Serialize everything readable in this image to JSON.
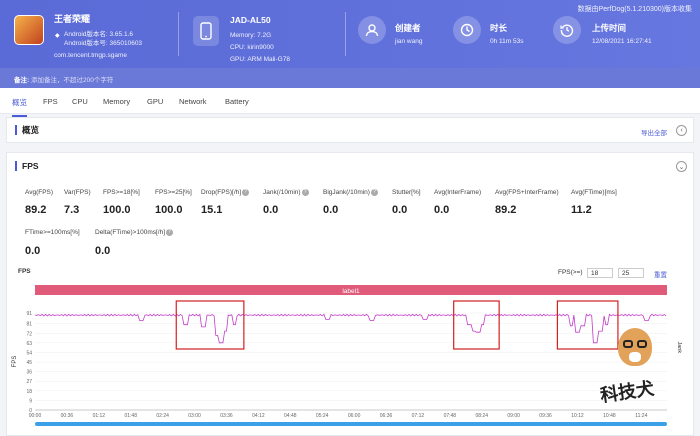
{
  "header": {
    "source": "数据由PerfDog(5.1.210300)版本收集",
    "app": {
      "name": "王者荣耀",
      "android_version": "Android版本名: 3.65.1.6",
      "android_code": "Android版本号: 365010603",
      "package": "com.tencent.tmgp.sgame"
    },
    "device": {
      "name": "JAD-AL50",
      "memory": "Memory: 7.2G",
      "cpu": "CPU: kirin9000",
      "gpu": "GPU: ARM Mali-G78"
    },
    "creator": {
      "label": "创建者",
      "value": "jian wang"
    },
    "duration": {
      "label": "时长",
      "value": "0h 11m 53s"
    },
    "upload": {
      "label": "上传时间",
      "value": "12/08/2021 16:27:41"
    },
    "note": {
      "label": "备注:",
      "placeholder": "添加备注，不超过200个字符"
    }
  },
  "tabs": [
    "概览",
    "FPS",
    "CPU",
    "Memory",
    "GPU",
    "Network",
    "Battery"
  ],
  "overview": {
    "title": "概览",
    "export": "导出全部"
  },
  "fps_panel": {
    "title": "FPS",
    "metrics_row1": [
      {
        "label": "Avg(FPS)",
        "value": "89.2",
        "help": false
      },
      {
        "label": "Var(FPS)",
        "value": "7.3",
        "help": false
      },
      {
        "label": "FPS>=18[%]",
        "value": "100.0",
        "help": false
      },
      {
        "label": "FPS>=25[%]",
        "value": "100.0",
        "help": false
      },
      {
        "label": "Drop(FPS)[/h]",
        "value": "15.1",
        "help": true
      },
      {
        "label": "Jank(/10min)",
        "value": "0.0",
        "help": true
      },
      {
        "label": "BigJank(/10min)",
        "value": "0.0",
        "help": true
      },
      {
        "label": "Stutter[%]",
        "value": "0.0",
        "help": false
      },
      {
        "label": "Avg(InterFrame)",
        "value": "0.0",
        "help": false
      },
      {
        "label": "Avg(FPS+InterFrame)",
        "value": "89.2",
        "help": false
      },
      {
        "label": "Avg(FTime)[ms]",
        "value": "11.2",
        "help": false
      }
    ],
    "metrics_row2": [
      {
        "label": "FTime>=100ms[%]",
        "value": "0.0",
        "help": false
      },
      {
        "label": "Delta(FTime)>100ms[/h]",
        "value": "0.0",
        "help": true
      }
    ],
    "chart_label": "FPS",
    "fps_filter_label": "FPS(>=)",
    "fps_filter_values": [
      "18",
      "25"
    ],
    "reset": "重置",
    "watermark": "科技犬"
  },
  "chart_data": {
    "type": "line",
    "title": "label1",
    "ylabel": "FPS",
    "right_label": "Jank",
    "y_ticks": [
      0,
      9,
      18,
      27,
      36,
      45,
      54,
      63,
      72,
      81,
      91
    ],
    "ylim": [
      0,
      91
    ],
    "x_ticks": [
      "00:00",
      "00:36",
      "01:12",
      "01:48",
      "02:24",
      "03:00",
      "03:36",
      "04:12",
      "04:48",
      "05:24",
      "06:00",
      "06:36",
      "07:12",
      "07:48",
      "08:24",
      "09:00",
      "09:36",
      "10:12",
      "10:48",
      "11:24"
    ],
    "x_range_seconds": [
      0,
      713
    ],
    "series": [
      {
        "color": "#c23bc8",
        "baseline": 89,
        "dips": [
          [
            170,
            80
          ],
          [
            190,
            78
          ],
          [
            205,
            70
          ],
          [
            210,
            63
          ],
          [
            215,
            74
          ],
          [
            225,
            80
          ],
          [
            490,
            80
          ],
          [
            495,
            74
          ],
          [
            500,
            73
          ],
          [
            505,
            80
          ],
          [
            605,
            79
          ],
          [
            612,
            73
          ],
          [
            618,
            79
          ],
          [
            632,
            63
          ],
          [
            638,
            74
          ],
          [
            645,
            80
          ],
          [
            380,
            84
          ],
          [
            330,
            85
          ],
          [
            120,
            84
          ],
          [
            440,
            85
          ],
          [
            690,
            84
          ]
        ]
      }
    ],
    "highlight_color": "#e05a7a",
    "scrollbar_color": "#3aa0e8"
  }
}
